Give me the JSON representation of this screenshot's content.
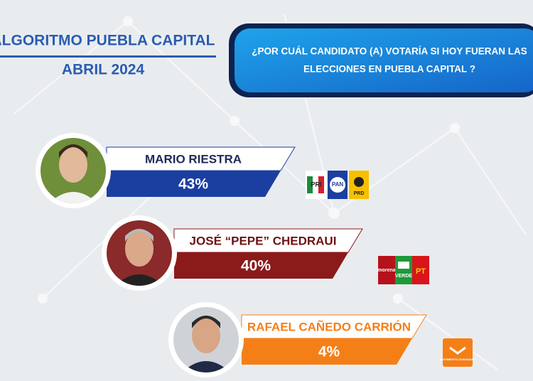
{
  "header": {
    "title": "ALGORITMO PUEBLA CAPITAL",
    "date": "ABRIL 2024"
  },
  "question": {
    "line1": "¿POR CUÁL CANDIDATO (A) VOTARÍA SI HOY FUERAN LAS",
    "line2": "ELECCIONES EN PUEBLA CAPITAL ?"
  },
  "candidates": [
    {
      "name": "MARIO RIESTRA",
      "percent": "43%",
      "parties": [
        "PRI",
        "PAN",
        "PRD"
      ]
    },
    {
      "name": "JOSÉ “PEPE” CHEDRAUI",
      "percent": "40%",
      "parties": [
        "morena",
        "VERDE",
        "PT"
      ]
    },
    {
      "name": "RAFAEL CAÑEDO CARRIÓN",
      "percent": "4%",
      "parties": [
        "MOVIMIENTO CIUDADANO"
      ]
    }
  ]
}
